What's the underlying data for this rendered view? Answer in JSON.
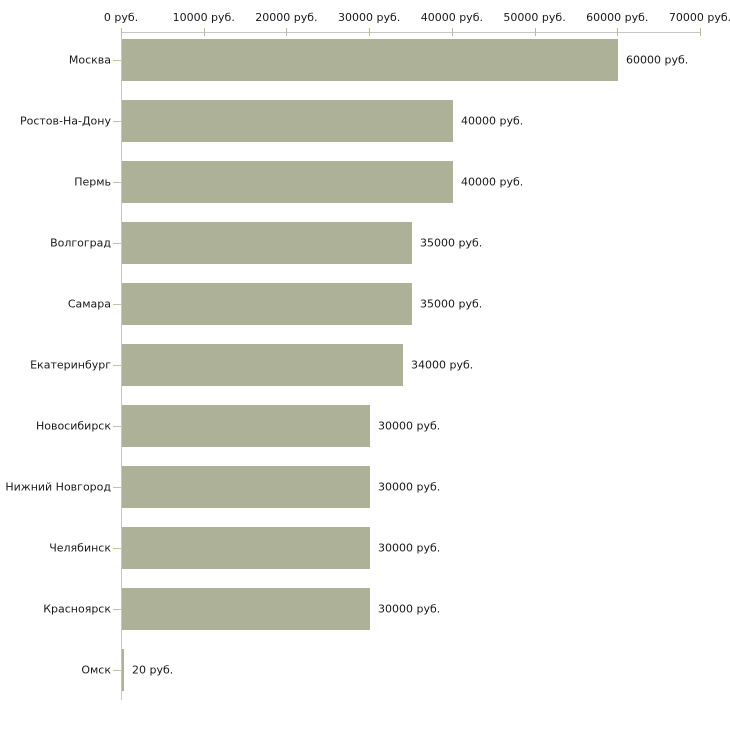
{
  "chart_data": {
    "type": "bar",
    "orientation": "horizontal",
    "categories": [
      "Москва",
      "Ростов-На-Дону",
      "Пермь",
      "Волгоград",
      "Самара",
      "Екатеринбург",
      "Новосибирск",
      "Нижний Новгород",
      "Челябинск",
      "Красноярск",
      "Омск"
    ],
    "values": [
      60000,
      40000,
      40000,
      35000,
      35000,
      34000,
      30000,
      30000,
      30000,
      30000,
      20
    ],
    "value_labels": [
      "60000 руб.",
      "40000 руб.",
      "40000 руб.",
      "35000 руб.",
      "35000 руб.",
      "34000 руб.",
      "30000 руб.",
      "30000 руб.",
      "30000 руб.",
      "30000 руб.",
      "20 руб."
    ],
    "x_ticks": [
      0,
      10000,
      20000,
      30000,
      40000,
      50000,
      60000,
      70000
    ],
    "x_tick_labels": [
      "0 руб.",
      "10000 руб.",
      "20000 руб.",
      "30000 руб.",
      "40000 руб.",
      "50000 руб.",
      "60000 руб.",
      "70000 руб."
    ],
    "xlim": [
      0,
      70000
    ],
    "grid": false,
    "legend": null,
    "colors": {
      "bar": "#acb198",
      "axis": "#c6c6c6",
      "x_tick": "#bdbd94",
      "y_tick": "#c3c3a0",
      "text": "#1a1a1a",
      "background": "#ffffff"
    }
  }
}
